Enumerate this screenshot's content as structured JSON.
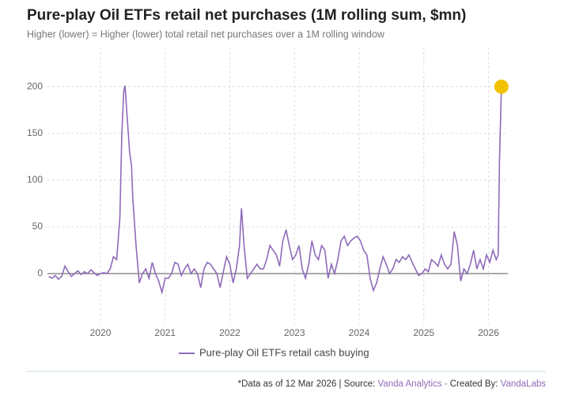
{
  "chart_data": {
    "type": "line",
    "title": "Pure-play Oil ETFs retail net purchases (1M rolling sum, $mn)",
    "subtitle": "Higher (lower) = Higher (lower) total retail net purchases over a 1M rolling window",
    "x": [
      2019.2,
      2019.25,
      2019.3,
      2019.35,
      2019.4,
      2019.45,
      2019.5,
      2019.55,
      2019.6,
      2019.65,
      2019.7,
      2019.75,
      2019.8,
      2019.85,
      2019.9,
      2019.95,
      2020.0,
      2020.05,
      2020.1,
      2020.15,
      2020.2,
      2020.25,
      2020.3,
      2020.33,
      2020.36,
      2020.38,
      2020.42,
      2020.45,
      2020.48,
      2020.5,
      2020.55,
      2020.6,
      2020.65,
      2020.7,
      2020.75,
      2020.8,
      2020.85,
      2020.9,
      2020.95,
      2021.0,
      2021.05,
      2021.1,
      2021.15,
      2021.2,
      2021.25,
      2021.3,
      2021.35,
      2021.4,
      2021.45,
      2021.5,
      2021.55,
      2021.6,
      2021.65,
      2021.7,
      2021.75,
      2021.8,
      2021.85,
      2021.9,
      2021.95,
      2022.0,
      2022.05,
      2022.1,
      2022.15,
      2022.18,
      2022.22,
      2022.27,
      2022.32,
      2022.37,
      2022.42,
      2022.47,
      2022.52,
      2022.57,
      2022.62,
      2022.67,
      2022.72,
      2022.77,
      2022.82,
      2022.87,
      2022.92,
      2022.97,
      2023.02,
      2023.07,
      2023.12,
      2023.17,
      2023.22,
      2023.27,
      2023.32,
      2023.37,
      2023.42,
      2023.47,
      2023.52,
      2023.57,
      2023.62,
      2023.67,
      2023.72,
      2023.77,
      2023.82,
      2023.87,
      2023.92,
      2023.97,
      2024.02,
      2024.07,
      2024.12,
      2024.17,
      2024.22,
      2024.27,
      2024.32,
      2024.37,
      2024.42,
      2024.47,
      2024.52,
      2024.57,
      2024.62,
      2024.67,
      2024.72,
      2024.77,
      2024.82,
      2024.87,
      2024.92,
      2024.97,
      2025.02,
      2025.07,
      2025.12,
      2025.17,
      2025.22,
      2025.27,
      2025.32,
      2025.37,
      2025.42,
      2025.47,
      2025.52,
      2025.57,
      2025.62,
      2025.67,
      2025.72,
      2025.77,
      2025.82,
      2025.87,
      2025.92,
      2025.97,
      2026.02,
      2026.07,
      2026.12,
      2026.15,
      2026.17,
      2026.2
    ],
    "series": [
      {
        "name": "Pure-play Oil ETFs retail cash buying",
        "color": "#8e6bb8",
        "values": [
          -3,
          -5,
          -2,
          -6,
          -3,
          8,
          2,
          -3,
          0,
          3,
          -1,
          2,
          0,
          4,
          1,
          -2,
          0,
          1,
          0,
          5,
          18,
          15,
          60,
          150,
          195,
          201,
          160,
          130,
          115,
          80,
          30,
          -10,
          0,
          5,
          -5,
          12,
          0,
          -8,
          -20,
          -5,
          -5,
          0,
          12,
          10,
          -2,
          5,
          10,
          0,
          5,
          0,
          -15,
          5,
          12,
          10,
          5,
          0,
          -15,
          2,
          18,
          10,
          -10,
          5,
          30,
          70,
          30,
          -5,
          0,
          5,
          10,
          5,
          5,
          15,
          30,
          25,
          20,
          8,
          35,
          47,
          30,
          15,
          20,
          30,
          5,
          -5,
          10,
          35,
          20,
          15,
          30,
          25,
          -5,
          10,
          0,
          15,
          35,
          40,
          30,
          35,
          38,
          40,
          35,
          25,
          20,
          -5,
          -18,
          -10,
          5,
          18,
          10,
          0,
          5,
          15,
          12,
          18,
          15,
          20,
          12,
          5,
          -2,
          0,
          5,
          2,
          15,
          12,
          8,
          20,
          10,
          5,
          10,
          45,
          30,
          -8,
          5,
          0,
          10,
          25,
          5,
          15,
          5,
          20,
          12,
          25,
          15,
          20,
          120,
          200
        ]
      }
    ],
    "highlight_color": "#f2c200",
    "xlim": [
      2019.18,
      2026.3
    ],
    "xticks": [
      2020,
      2021,
      2022,
      2023,
      2024,
      2025,
      2026
    ],
    "ylim": [
      -54,
      242
    ],
    "yticks": [
      0,
      50,
      100,
      150,
      200
    ],
    "grid": true,
    "footnote": "*Data as of 12 Mar 2026 | Source:",
    "source": "Vanda Analytics",
    "credit": "· Created By:",
    "creator": "VandaLabs"
  }
}
